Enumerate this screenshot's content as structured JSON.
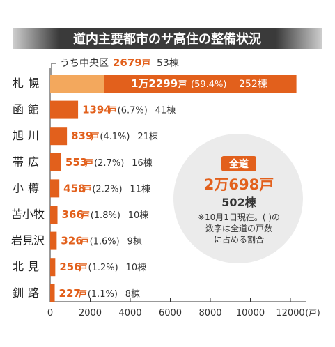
{
  "chart_data": {
    "type": "bar",
    "orientation": "horizontal",
    "title": "道内主要都市のサ高住の整備状況",
    "categories": [
      "札幌",
      "函館",
      "旭川",
      "帯広",
      "小樽",
      "苫小牧",
      "岩見沢",
      "北見",
      "釧路"
    ],
    "values": [
      12299,
      1394,
      839,
      553,
      458,
      366,
      326,
      256,
      227
    ],
    "value_labels": [
      "1万2299",
      "1394",
      "839",
      "553",
      "458",
      "366",
      "326",
      "256",
      "227"
    ],
    "value_unit": "戸",
    "percent_labels": [
      "(59.4%)",
      "(6.7%)",
      "(4.1%)",
      "(2.7%)",
      "(2.2%)",
      "(1.8%)",
      "(1.6%)",
      "(1.2%)",
      "(1.1%)"
    ],
    "building_labels": [
      "252棟",
      "41棟",
      "21棟",
      "16棟",
      "11棟",
      "10棟",
      "9棟",
      "10棟",
      "8棟"
    ],
    "sub_segment": {
      "label": "うち中央区",
      "category": "札幌",
      "value": 2679,
      "value_label": "2679",
      "unit": "戸",
      "buildings_label": "53棟"
    },
    "xlim": [
      0,
      12800
    ],
    "xticks": [
      0,
      2000,
      4000,
      6000,
      8000,
      10000,
      12000
    ],
    "xtick_labels": [
      "0",
      "2000",
      "4000",
      "6000",
      "8000",
      "10000",
      "12000"
    ],
    "x_unit_label": "(戸)",
    "colors": {
      "bar": "#e2601c",
      "sub_segment": "#f3a85d",
      "value_text": "#e2601c",
      "title_bg": "#3a3a3a",
      "circle_bg": "#ebebeb"
    }
  },
  "summary": {
    "badge": "全道",
    "total": "2万698戸",
    "buildings": "502棟",
    "note_lines": [
      "※10月1日現在。( )の",
      "数字は全道の戸数",
      "に占める割合"
    ]
  }
}
